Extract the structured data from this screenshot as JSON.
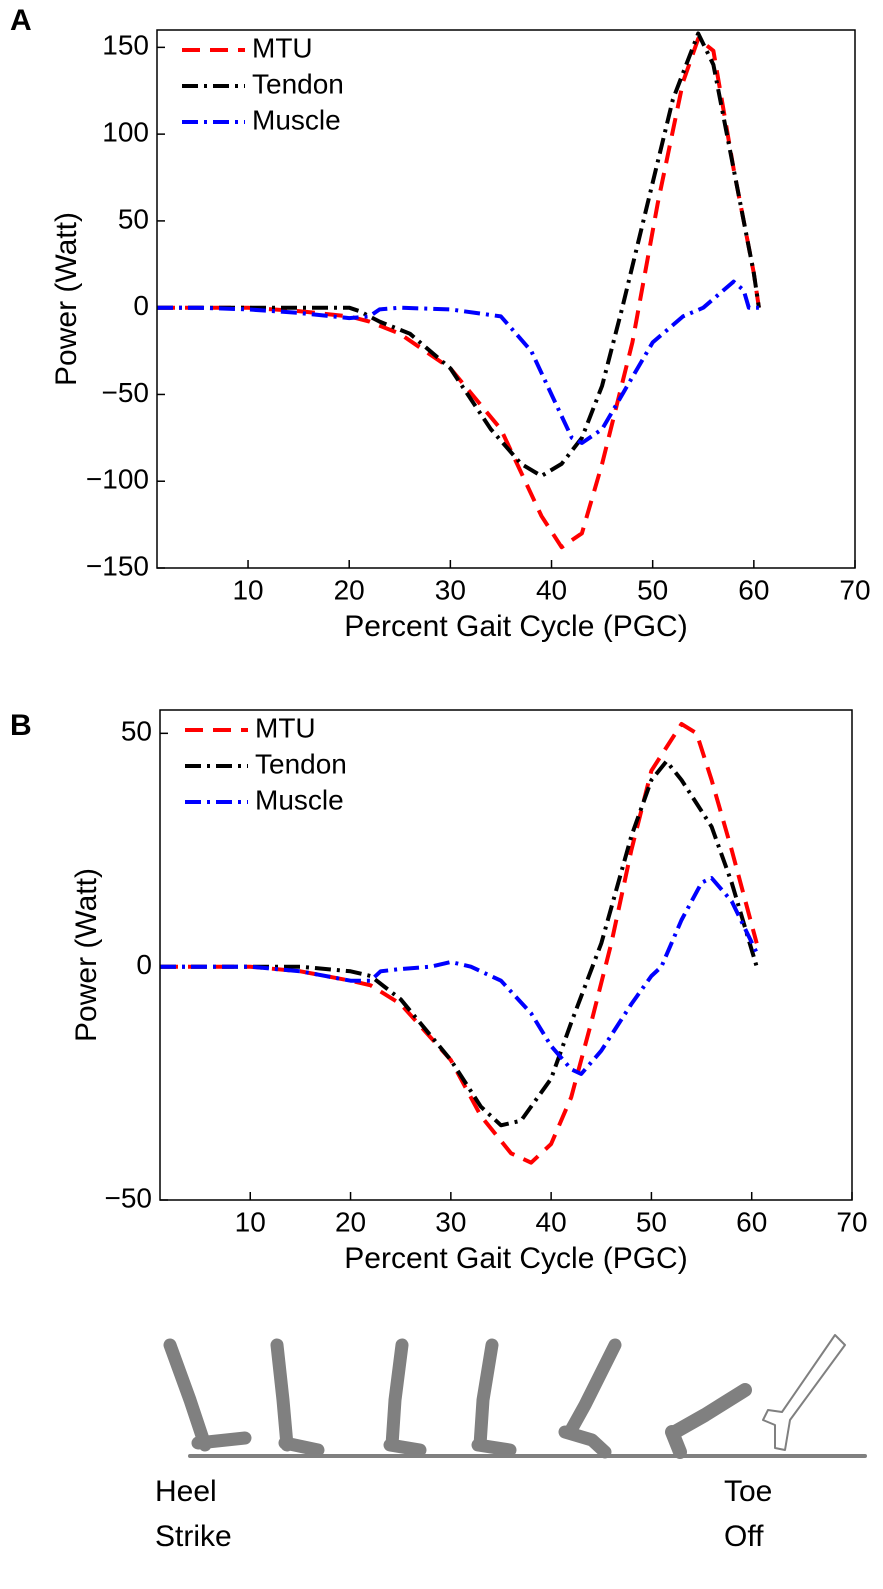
{
  "chart_data": [
    {
      "type": "line",
      "panel_label": "A",
      "xlabel": "Percent Gait Cycle (PGC)",
      "ylabel": "Power (Watt)",
      "xlim": [
        1,
        70
      ],
      "ylim": [
        -150,
        160
      ],
      "xticks": [
        10,
        20,
        30,
        40,
        50,
        60,
        70
      ],
      "yticks": [
        {
          "value": -150,
          "label": "−150"
        },
        {
          "value": -100,
          "label": "−100"
        },
        {
          "value": -50,
          "label": "−50"
        },
        0,
        50,
        100,
        150
      ],
      "legend": "upper left",
      "series": [
        {
          "name": "MTU",
          "color": "#ff0000",
          "dash": "dashed",
          "x": [
            1,
            10,
            15,
            20,
            22,
            25,
            30,
            35,
            39,
            41,
            43,
            45,
            48,
            50.5,
            53,
            54.5,
            56,
            58,
            60,
            60.5
          ],
          "values": [
            0,
            0,
            -2,
            -5,
            -8,
            -15,
            -35,
            -70,
            -120,
            -138,
            -130,
            -90,
            -20,
            60,
            130,
            155,
            148,
            80,
            20,
            0
          ]
        },
        {
          "name": "Tendon",
          "color": "#000000",
          "dash": "dashdot",
          "x": [
            1,
            10,
            20,
            21,
            23,
            26,
            30,
            34,
            37,
            39,
            41,
            43,
            45,
            47,
            49.5,
            52,
            54.5,
            56,
            58,
            60,
            60.5
          ],
          "values": [
            0,
            0,
            0,
            -2,
            -8,
            -15,
            -35,
            -70,
            -90,
            -97,
            -90,
            -75,
            -45,
            0,
            60,
            120,
            158,
            140,
            80,
            20,
            0
          ]
        },
        {
          "name": "Muscle",
          "color": "#0000ff",
          "dash": "dashdot",
          "x": [
            1,
            5,
            10,
            15,
            20,
            22,
            23,
            25,
            30,
            35,
            38,
            40,
            42,
            43,
            45,
            46,
            48,
            50,
            53,
            55,
            56,
            58,
            59,
            59.5,
            60.5
          ],
          "values": [
            0,
            0,
            -1,
            -3,
            -6,
            -5,
            -1,
            0,
            -1,
            -5,
            -25,
            -50,
            -75,
            -78,
            -70,
            -60,
            -40,
            -20,
            -5,
            0,
            5,
            15,
            10,
            0,
            0
          ]
        }
      ]
    },
    {
      "type": "line",
      "panel_label": "B",
      "xlabel": "Percent Gait Cycle (PGC)",
      "ylabel": "Power (Watt)",
      "xlim": [
        1,
        70
      ],
      "ylim": [
        -50,
        55
      ],
      "xticks": [
        10,
        20,
        30,
        40,
        50,
        60,
        70
      ],
      "yticks": [
        {
          "value": -50,
          "label": "−50"
        },
        0,
        50
      ],
      "legend": "upper left",
      "series": [
        {
          "name": "MTU",
          "color": "#ff0000",
          "dash": "dashed",
          "x": [
            1,
            10,
            15,
            20,
            22,
            25,
            30,
            33,
            36,
            38,
            40,
            42,
            44,
            46,
            48,
            50,
            53,
            54.5,
            56,
            58,
            60.5
          ],
          "values": [
            0,
            0,
            -1,
            -3,
            -4,
            -8,
            -20,
            -32,
            -40,
            -42,
            -38,
            -28,
            -12,
            5,
            25,
            42,
            52,
            50,
            40,
            25,
            5
          ]
        },
        {
          "name": "Tendon",
          "color": "#000000",
          "dash": "dashdot",
          "x": [
            1,
            15,
            20,
            22,
            25,
            30,
            33,
            35,
            37,
            40,
            42,
            45,
            48,
            50,
            51.5,
            53,
            56,
            58,
            60.5
          ],
          "values": [
            0,
            0,
            -1,
            -2,
            -7,
            -20,
            -30,
            -34,
            -33,
            -24,
            -12,
            5,
            28,
            40,
            44,
            40,
            30,
            18,
            0
          ]
        },
        {
          "name": "Muscle",
          "color": "#0000ff",
          "dash": "dashdot",
          "x": [
            1,
            10,
            15,
            20,
            22,
            23,
            25,
            28,
            30,
            32,
            35,
            38,
            40,
            42,
            43,
            45,
            48,
            50,
            51,
            53,
            55,
            56,
            58,
            60.5
          ],
          "values": [
            0,
            0,
            -1,
            -3,
            -3,
            -1,
            -0.5,
            0,
            1,
            0,
            -3,
            -10,
            -17,
            -22,
            -23,
            -18,
            -8,
            -2,
            0,
            10,
            18,
            19,
            14,
            3
          ]
        }
      ]
    }
  ],
  "illustration": {
    "left_label": [
      "Heel",
      "Strike"
    ],
    "right_label": [
      "Toe",
      "Off"
    ]
  }
}
